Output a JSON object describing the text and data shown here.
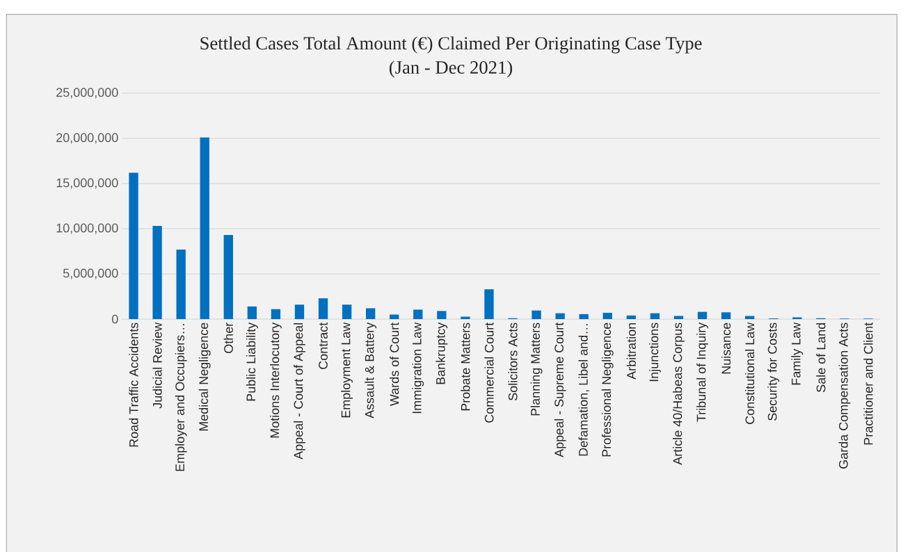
{
  "chart_data": {
    "type": "bar",
    "title": "Settled Cases Total Amount (€) Claimed Per Originating Case Type",
    "subtitle": "(Jan - Dec 2021)",
    "categories": [
      "Road Traffic Accidents",
      "Judicial Review",
      "Employer and Occupiers…",
      "Medical Negligence",
      "Other",
      "Public Liability",
      "Motions Interlocutory",
      "Appeal - Court of Appeal",
      "Contract",
      "Employment Law",
      "Assault & Battery",
      "Wards of Court",
      "Immigration Law",
      "Bankruptcy",
      "Probate Matters",
      "Commercial Court",
      "Solicitors Acts",
      "Planning Matters",
      "Appeal - Supreme Court",
      "Defamation, Libel and…",
      "Professional Negligence",
      "Arbitration",
      "Injunctions",
      "Article 40/Habeas Corpus",
      "Tribunal of Inquiry",
      "Nuisance",
      "Constitutional Law",
      "Security for Costs",
      "Family Law",
      "Sale of Land",
      "Garda Compensation Acts",
      "Practitioner and Client"
    ],
    "values": [
      16200000,
      10300000,
      7700000,
      20100000,
      9300000,
      1400000,
      1100000,
      1600000,
      2300000,
      1600000,
      1200000,
      500000,
      1050000,
      900000,
      270000,
      3300000,
      100000,
      950000,
      650000,
      550000,
      700000,
      400000,
      650000,
      350000,
      800000,
      750000,
      350000,
      80000,
      200000,
      100000,
      50000,
      50000
    ],
    "color": "#0070c0",
    "ylim": [
      0,
      25000000
    ],
    "yticks": [
      0,
      {
        "value": 5000000,
        "label": "5,000,000"
      },
      {
        "value": 10000000,
        "label": "10,000,000"
      },
      {
        "value": 15000000,
        "label": "15,000,000"
      },
      {
        "value": 20000000,
        "label": "20,000,000"
      },
      {
        "value": 25000000,
        "label": "25,000,000"
      }
    ],
    "grid": "y"
  }
}
